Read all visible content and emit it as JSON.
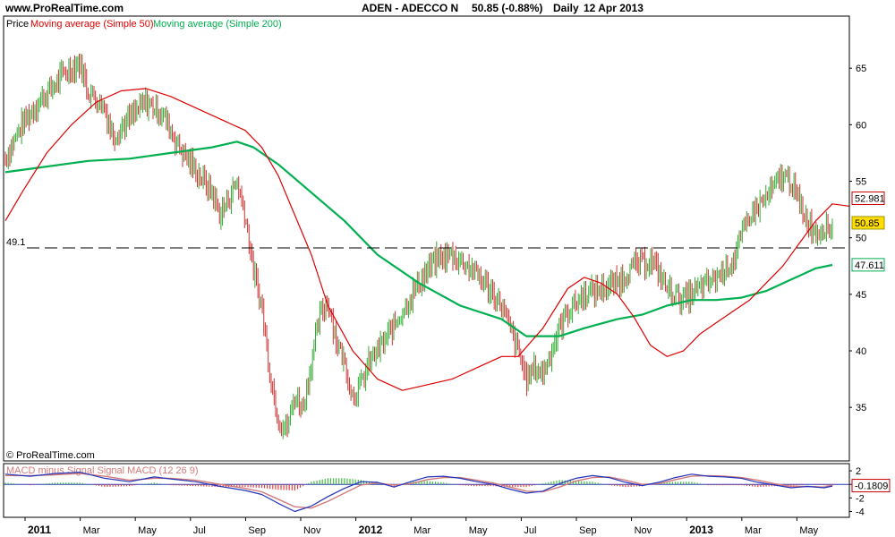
{
  "header": {
    "site": "www.ProRealTime.com",
    "instrument": "ADEN - ADECCO N",
    "quote": "50.85 (-0.88%)",
    "period": "Daily",
    "date": "12 Apr 2013"
  },
  "legend": {
    "price": "Price",
    "ma50": "Moving average (Simple 50)",
    "ma200": "Moving average (Simple 200)"
  },
  "copyright": "© ProRealTime.com",
  "colors": {
    "up": "#33aa33",
    "down": "#cc3333",
    "ma50": "#dd0000",
    "ma200": "#00b050",
    "macd": "#2233bb",
    "signal": "#d27a7a",
    "hist_up": "#44bb44",
    "hist_down": "#dd4444",
    "badge_price": "#ffdd00",
    "badge_ma50": "#cc0000",
    "badge_ma200": "#00b050"
  },
  "chart_data": [
    {
      "type": "line",
      "title": "ADEN - ADECCO N",
      "x_ticks": [
        {
          "label": "2011",
          "year": true,
          "pos": 0.0
        },
        {
          "label": "Mar",
          "year": false,
          "pos": 0.0667
        },
        {
          "label": "May",
          "year": false,
          "pos": 0.1333
        },
        {
          "label": "Jul",
          "year": false,
          "pos": 0.2
        },
        {
          "label": "Sep",
          "year": false,
          "pos": 0.2667
        },
        {
          "label": "Nov",
          "year": false,
          "pos": 0.3333
        },
        {
          "label": "2012",
          "year": true,
          "pos": 0.4
        },
        {
          "label": "Mar",
          "year": false,
          "pos": 0.4667
        },
        {
          "label": "May",
          "year": false,
          "pos": 0.5333
        },
        {
          "label": "Jul",
          "year": false,
          "pos": 0.6
        },
        {
          "label": "Sep",
          "year": false,
          "pos": 0.6667
        },
        {
          "label": "Nov",
          "year": false,
          "pos": 0.7333
        },
        {
          "label": "2013",
          "year": true,
          "pos": 0.8
        },
        {
          "label": "Mar",
          "year": false,
          "pos": 0.8667
        },
        {
          "label": "May",
          "year": false,
          "pos": 0.9333
        }
      ],
      "y_ticks": [
        35,
        40,
        45,
        50,
        55,
        60,
        65
      ],
      "ylim": [
        30.5,
        68.5
      ],
      "horizontal_line": {
        "value": 49.1,
        "label": "49.1"
      },
      "last_values": {
        "price": "50.85",
        "ma50": "52.981",
        "ma200": "47.611"
      },
      "series": [
        {
          "name": "Moving average (Simple 50)",
          "kind": "ma50",
          "points": [
            [
              0,
              51.5
            ],
            [
              2,
              54
            ],
            [
              5,
              57.5
            ],
            [
              8,
              60
            ],
            [
              11,
              62
            ],
            [
              14,
              63
            ],
            [
              17,
              63.2
            ],
            [
              20,
              62.5
            ],
            [
              23,
              61.5
            ],
            [
              26,
              60.5
            ],
            [
              29,
              59.5
            ],
            [
              31,
              58
            ],
            [
              33,
              55.5
            ],
            [
              35,
              52
            ],
            [
              37,
              48.5
            ],
            [
              39,
              44
            ],
            [
              42,
              40
            ],
            [
              45,
              37.5
            ],
            [
              48,
              36.5
            ],
            [
              51,
              37
            ],
            [
              54,
              37.5
            ],
            [
              57,
              38.5
            ],
            [
              60,
              39.5
            ],
            [
              62,
              39.5
            ],
            [
              65,
              42
            ],
            [
              68,
              45.5
            ],
            [
              70,
              46.5
            ],
            [
              72,
              46
            ],
            [
              74,
              45
            ],
            [
              76,
              43
            ],
            [
              78,
              40.5
            ],
            [
              80,
              39.5
            ],
            [
              82,
              40
            ],
            [
              84,
              41.5
            ],
            [
              86,
              42.5
            ],
            [
              88,
              43.5
            ],
            [
              90,
              44.5
            ],
            [
              92,
              46
            ],
            [
              94,
              47.5
            ],
            [
              96,
              49.5
            ],
            [
              98,
              51.5
            ],
            [
              100,
              53
            ],
            [
              102,
              52.8
            ]
          ]
        },
        {
          "name": "Moving average (Simple 200)",
          "kind": "ma200",
          "points": [
            [
              0,
              55.8
            ],
            [
              5,
              56.3
            ],
            [
              10,
              56.8
            ],
            [
              15,
              57
            ],
            [
              20,
              57.5
            ],
            [
              25,
              58
            ],
            [
              28,
              58.5
            ],
            [
              30,
              58
            ],
            [
              33,
              56.5
            ],
            [
              37,
              54
            ],
            [
              41,
              51.5
            ],
            [
              45,
              48.5
            ],
            [
              50,
              46
            ],
            [
              55,
              44
            ],
            [
              60,
              42.8
            ],
            [
              63,
              41.3
            ],
            [
              67,
              41.3
            ],
            [
              70,
              42
            ],
            [
              74,
              42.8
            ],
            [
              77,
              43.2
            ],
            [
              80,
              44
            ],
            [
              83,
              44.5
            ],
            [
              86,
              44.5
            ],
            [
              89,
              44.7
            ],
            [
              92,
              45.3
            ],
            [
              95,
              46.3
            ],
            [
              98,
              47.3
            ],
            [
              100,
              47.6
            ]
          ]
        },
        {
          "name": "Price",
          "kind": "price",
          "points": [
            [
              0,
              57
            ],
            [
              2,
              60
            ],
            [
              4,
              62
            ],
            [
              6,
              63.5
            ],
            [
              7,
              64.5
            ],
            [
              9,
              65.5
            ],
            [
              10,
              63
            ],
            [
              12,
              61.5
            ],
            [
              13,
              59
            ],
            [
              15,
              60.5
            ],
            [
              17,
              62
            ],
            [
              19,
              61
            ],
            [
              21,
              58
            ],
            [
              23,
              56
            ],
            [
              25,
              54
            ],
            [
              26,
              52
            ],
            [
              28,
              55
            ],
            [
              29,
              52
            ],
            [
              30,
              47
            ],
            [
              31,
              44
            ],
            [
              32,
              38
            ],
            [
              33,
              34
            ],
            [
              34,
              33
            ],
            [
              35,
              36
            ],
            [
              36,
              35
            ],
            [
              37,
              39
            ],
            [
              38,
              43
            ],
            [
              39,
              44.5
            ],
            [
              40,
              41
            ],
            [
              41,
              39
            ],
            [
              42,
              36
            ],
            [
              43,
              37
            ],
            [
              44,
              39
            ],
            [
              45,
              40
            ],
            [
              46,
              41
            ],
            [
              48,
              43.5
            ],
            [
              50,
              46
            ],
            [
              52,
              48
            ],
            [
              54,
              48.5
            ],
            [
              56,
              47.5
            ],
            [
              58,
              46
            ],
            [
              60,
              44
            ],
            [
              61,
              42
            ],
            [
              62,
              40
            ],
            [
              63,
              37.5
            ],
            [
              64,
              38.5
            ],
            [
              65,
              38
            ],
            [
              66,
              40
            ],
            [
              67,
              42
            ],
            [
              68,
              43.5
            ],
            [
              70,
              45
            ],
            [
              72,
              45.5
            ],
            [
              74,
              46
            ],
            [
              76,
              47.5
            ],
            [
              78,
              48
            ],
            [
              79,
              47
            ],
            [
              80,
              45.5
            ],
            [
              82,
              44.5
            ],
            [
              84,
              45.5
            ],
            [
              86,
              46.5
            ],
            [
              88,
              48
            ],
            [
              89,
              50
            ],
            [
              90,
              52
            ],
            [
              92,
              53.5
            ],
            [
              94,
              55.5
            ],
            [
              95,
              55
            ],
            [
              96,
              53
            ],
            [
              97,
              51.5
            ],
            [
              98,
              50.5
            ],
            [
              99,
              51
            ],
            [
              100,
              50.85
            ]
          ]
        }
      ]
    },
    {
      "type": "line",
      "title": "MACD minus Signal Signal MACD (12 26 9)",
      "legend_text": "MACD minus Signal Signal MACD (12 26 9)",
      "y_ticks": [
        2,
        0,
        -2,
        -4
      ],
      "ylim": [
        -4.6,
        2.8
      ],
      "last_value": "-0.1809",
      "series": [
        {
          "name": "MACD",
          "kind": "macd",
          "points": [
            [
              0,
              1.5
            ],
            [
              3,
              1.2
            ],
            [
              6,
              1.6
            ],
            [
              9,
              1.8
            ],
            [
              12,
              0.9
            ],
            [
              15,
              0.4
            ],
            [
              18,
              1.1
            ],
            [
              20,
              0.8
            ],
            [
              23,
              0.4
            ],
            [
              26,
              -0.3
            ],
            [
              29,
              -0.9
            ],
            [
              31,
              -1.5
            ],
            [
              33,
              -2.8
            ],
            [
              35,
              -4.0
            ],
            [
              37,
              -3.2
            ],
            [
              39,
              -1.8
            ],
            [
              41,
              -0.6
            ],
            [
              43,
              0.4
            ],
            [
              45,
              0.3
            ],
            [
              47,
              -0.4
            ],
            [
              49,
              0.4
            ],
            [
              51,
              1.1
            ],
            [
              53,
              1.2
            ],
            [
              55,
              0.9
            ],
            [
              57,
              0.4
            ],
            [
              59,
              0.0
            ],
            [
              61,
              -0.7
            ],
            [
              63,
              -1.3
            ],
            [
              65,
              -1.0
            ],
            [
              67,
              0.1
            ],
            [
              69,
              0.9
            ],
            [
              71,
              1.3
            ],
            [
              73,
              1.0
            ],
            [
              75,
              0.3
            ],
            [
              77,
              -0.2
            ],
            [
              79,
              0.3
            ],
            [
              81,
              1.0
            ],
            [
              83,
              1.5
            ],
            [
              85,
              1.2
            ],
            [
              87,
              1.1
            ],
            [
              89,
              0.9
            ],
            [
              91,
              0.3
            ],
            [
              93,
              -0.1
            ],
            [
              95,
              -0.5
            ],
            [
              97,
              -0.3
            ],
            [
              99,
              -0.5
            ],
            [
              100,
              -0.25
            ]
          ]
        },
        {
          "name": "Signal",
          "kind": "signal",
          "points": [
            [
              0,
              1.3
            ],
            [
              3,
              1.3
            ],
            [
              6,
              1.4
            ],
            [
              9,
              1.6
            ],
            [
              12,
              1.2
            ],
            [
              15,
              0.6
            ],
            [
              18,
              0.9
            ],
            [
              20,
              0.9
            ],
            [
              23,
              0.6
            ],
            [
              26,
              0.0
            ],
            [
              29,
              -0.6
            ],
            [
              31,
              -1.1
            ],
            [
              33,
              -2.2
            ],
            [
              35,
              -3.3
            ],
            [
              37,
              -3.5
            ],
            [
              39,
              -2.5
            ],
            [
              41,
              -1.3
            ],
            [
              43,
              -0.1
            ],
            [
              45,
              0.2
            ],
            [
              47,
              -0.1
            ],
            [
              49,
              0.1
            ],
            [
              51,
              0.7
            ],
            [
              53,
              1.0
            ],
            [
              55,
              1.0
            ],
            [
              57,
              0.6
            ],
            [
              59,
              0.2
            ],
            [
              61,
              -0.4
            ],
            [
              63,
              -1.0
            ],
            [
              65,
              -1.1
            ],
            [
              67,
              -0.4
            ],
            [
              69,
              0.5
            ],
            [
              71,
              1.0
            ],
            [
              73,
              1.1
            ],
            [
              75,
              0.6
            ],
            [
              77,
              0.0
            ],
            [
              79,
              0.1
            ],
            [
              81,
              0.7
            ],
            [
              83,
              1.2
            ],
            [
              85,
              1.3
            ],
            [
              87,
              1.2
            ],
            [
              89,
              1.0
            ],
            [
              91,
              0.6
            ],
            [
              93,
              0.1
            ],
            [
              95,
              -0.3
            ],
            [
              97,
              -0.3
            ],
            [
              99,
              -0.4
            ],
            [
              100,
              -0.1
            ]
          ]
        }
      ]
    }
  ]
}
